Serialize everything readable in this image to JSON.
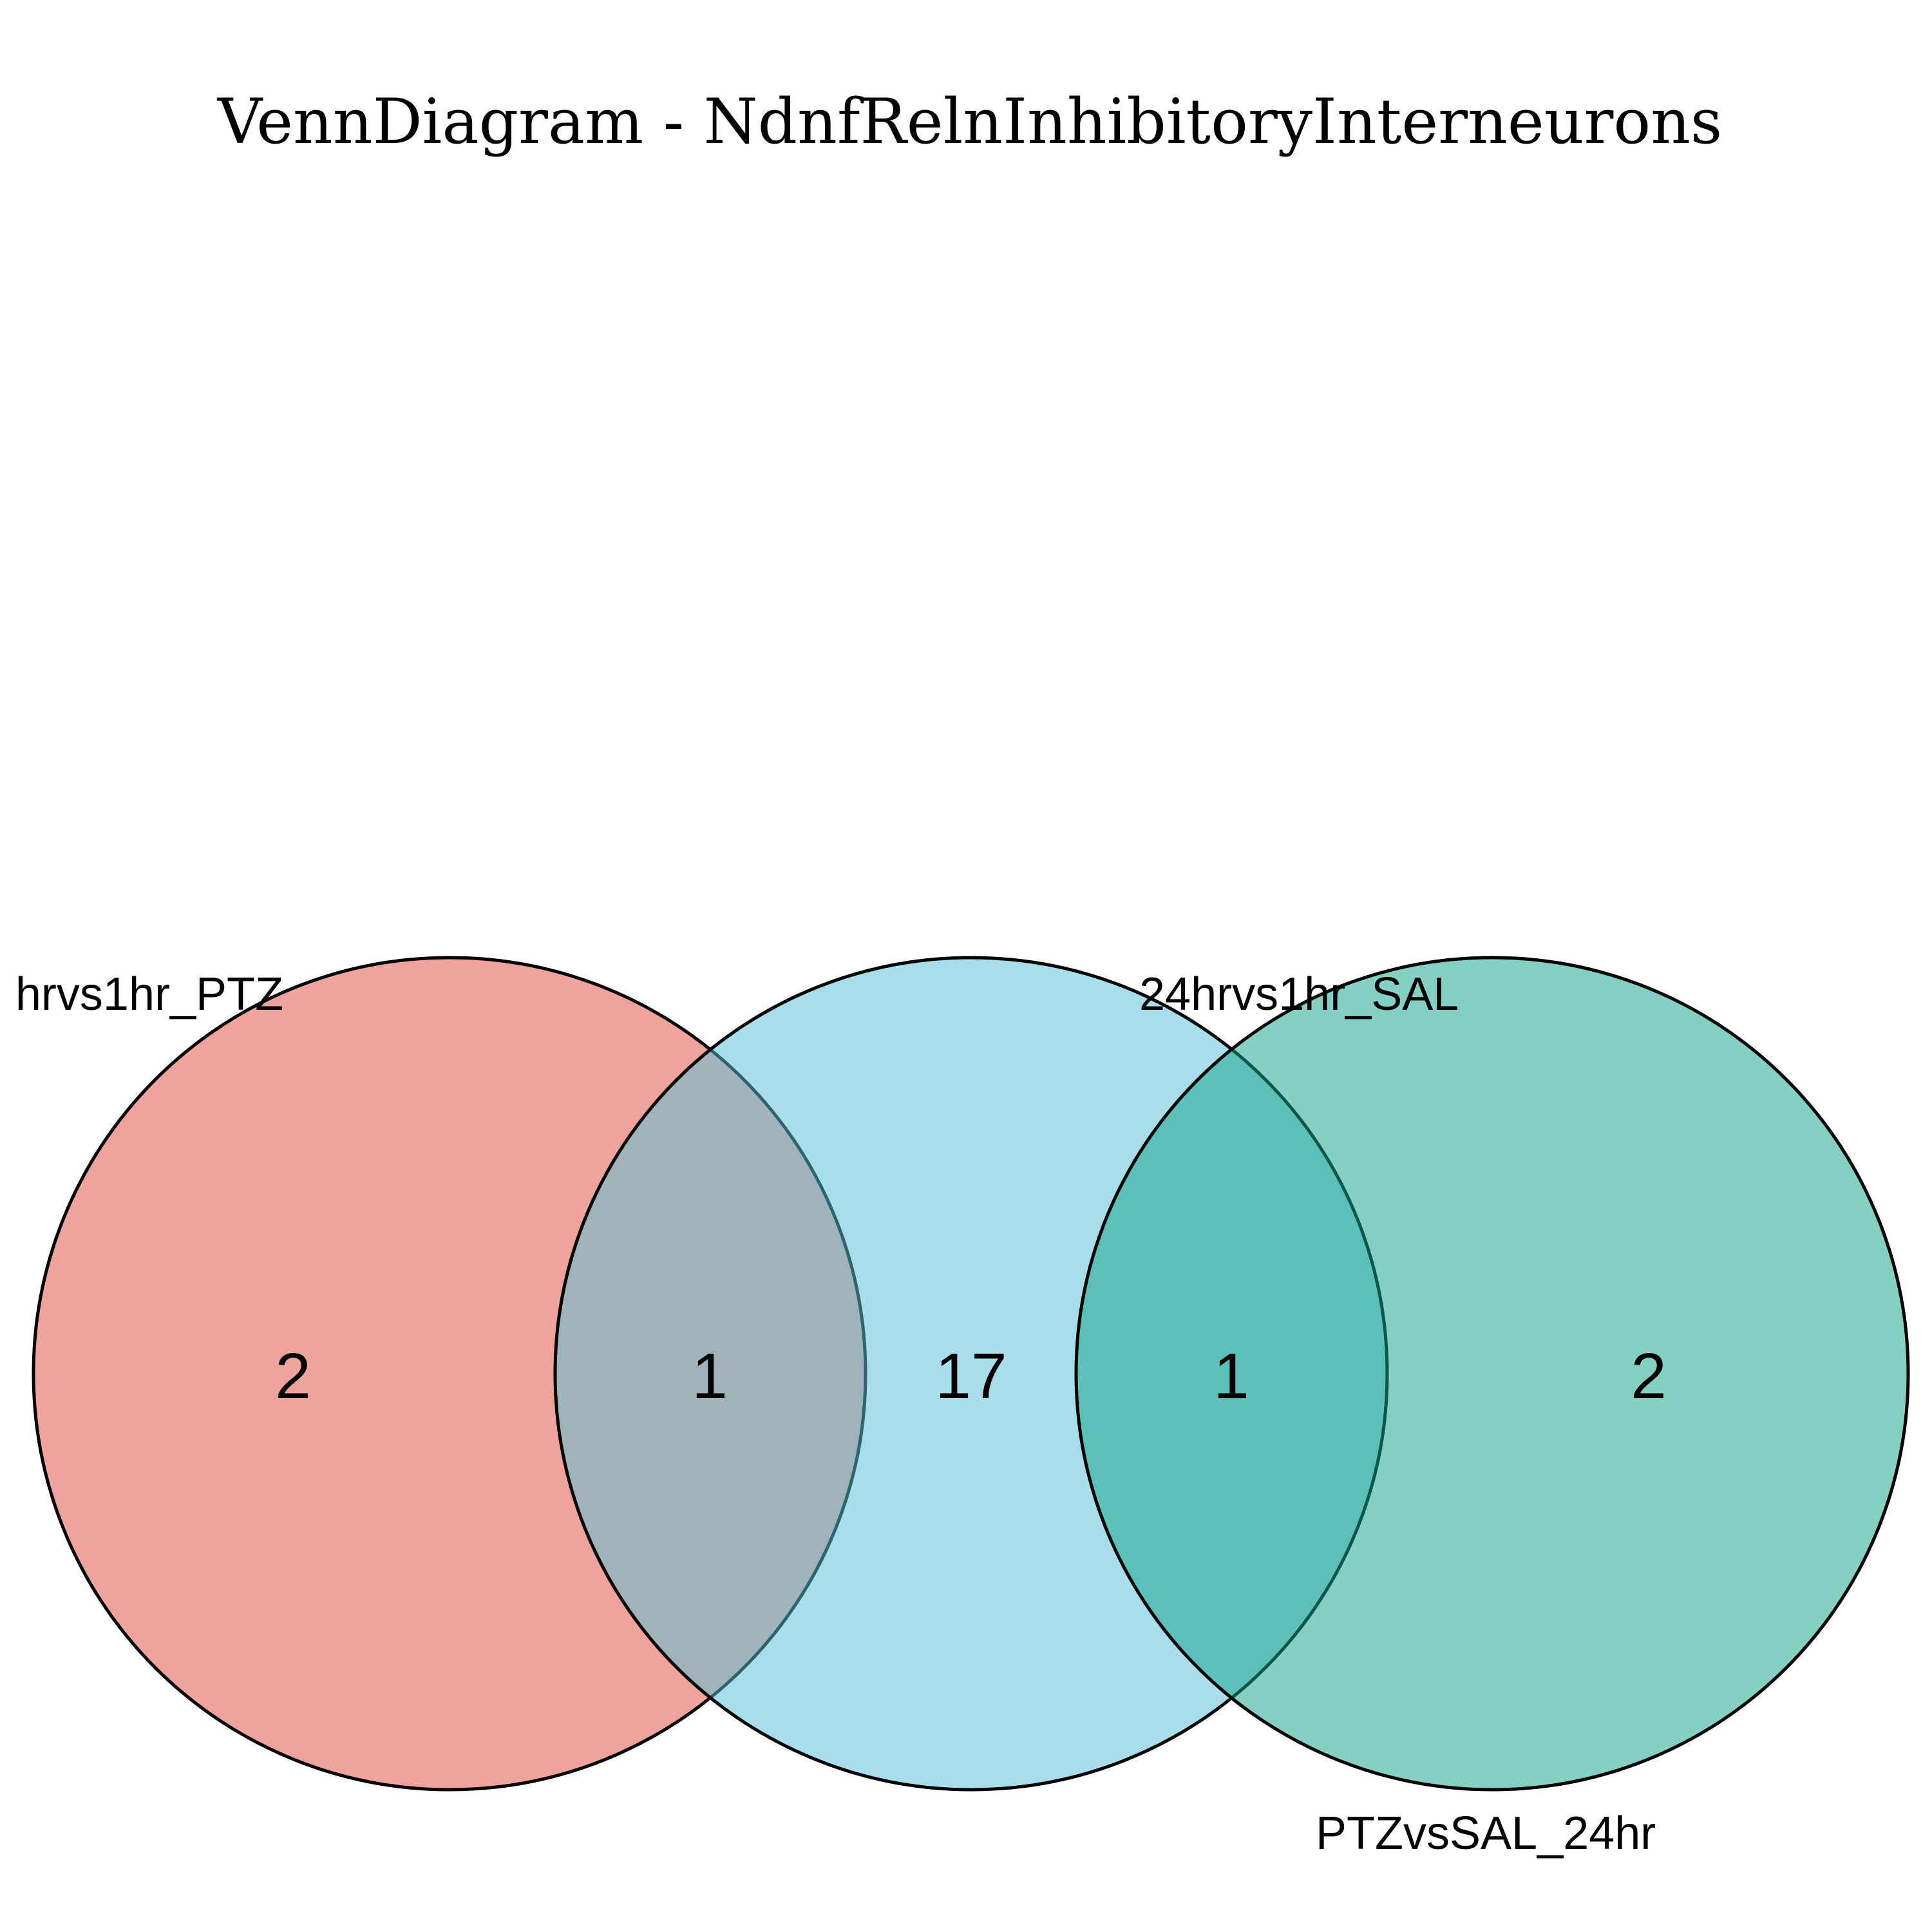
{
  "title": "VennDiagram - NdnfRelnInhibitoryInterneurons",
  "sets": [
    {
      "name": "hrvs1hr_PTZ",
      "color": "#E4584B",
      "opacity": 0.55
    },
    {
      "name": "24hrvs1hr_SAL",
      "color": "#56BFD6",
      "opacity": 0.52
    },
    {
      "name": "PTZvsSAL_24hr",
      "color": "#14A58A",
      "opacity": 0.52
    }
  ],
  "regions": {
    "only_a": "2",
    "a_and_b": "1",
    "only_b": "17",
    "b_and_c": "1",
    "only_c": "2"
  }
}
